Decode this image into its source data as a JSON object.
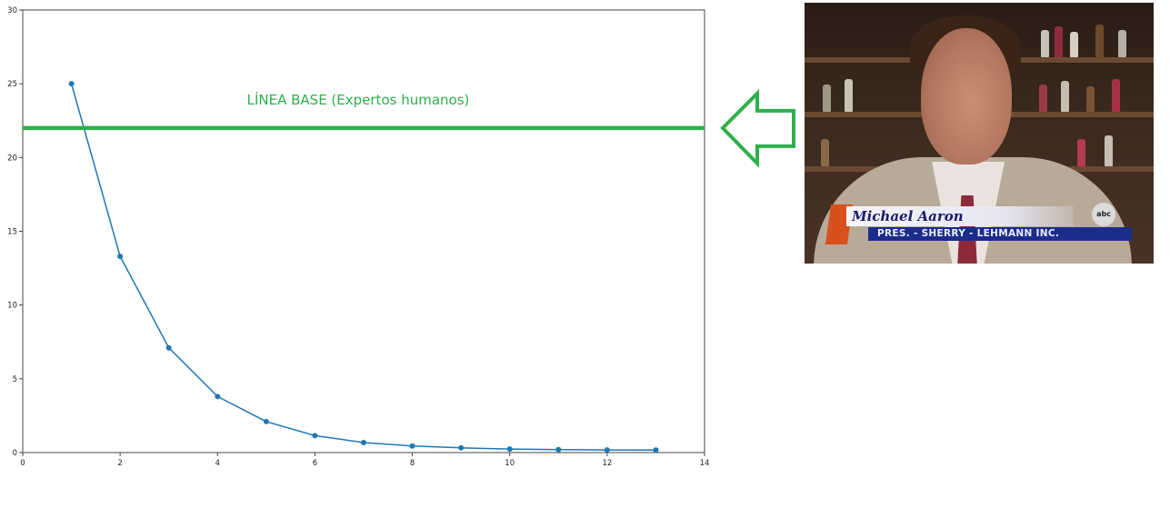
{
  "chart_data": {
    "type": "line",
    "x": [
      1,
      2,
      3,
      4,
      5,
      6,
      7,
      8,
      9,
      10,
      11,
      12,
      13
    ],
    "series": [
      {
        "values": [
          25.0,
          13.3,
          7.1,
          3.8,
          2.1,
          1.15,
          0.68,
          0.45,
          0.32,
          0.24,
          0.2,
          0.18,
          0.17
        ],
        "color": "#1f77b4"
      }
    ],
    "xlim": [
      0,
      14
    ],
    "ylim": [
      0,
      30
    ],
    "x_ticks": [
      "0",
      "2",
      "4",
      "6",
      "8",
      "10",
      "12",
      "14"
    ],
    "y_ticks": [
      "0",
      "5",
      "10",
      "15",
      "20",
      "25",
      "30"
    ],
    "x_tick_values": [
      0,
      2,
      4,
      6,
      8,
      10,
      12,
      14
    ],
    "y_tick_values": [
      0,
      5,
      10,
      15,
      20,
      25,
      30
    ],
    "grid": false,
    "baseline": {
      "label": "LÍNEA BASE (Expertos humanos)",
      "y": 22,
      "color": "#2db04b"
    },
    "arrow": {
      "direction": "left",
      "color": "#2db04b"
    }
  },
  "photo": {
    "name_caption": "Michael Aaron",
    "title_caption": "PRES. - SHERRY - LEHMANN  INC.",
    "logo_text": "abc"
  }
}
